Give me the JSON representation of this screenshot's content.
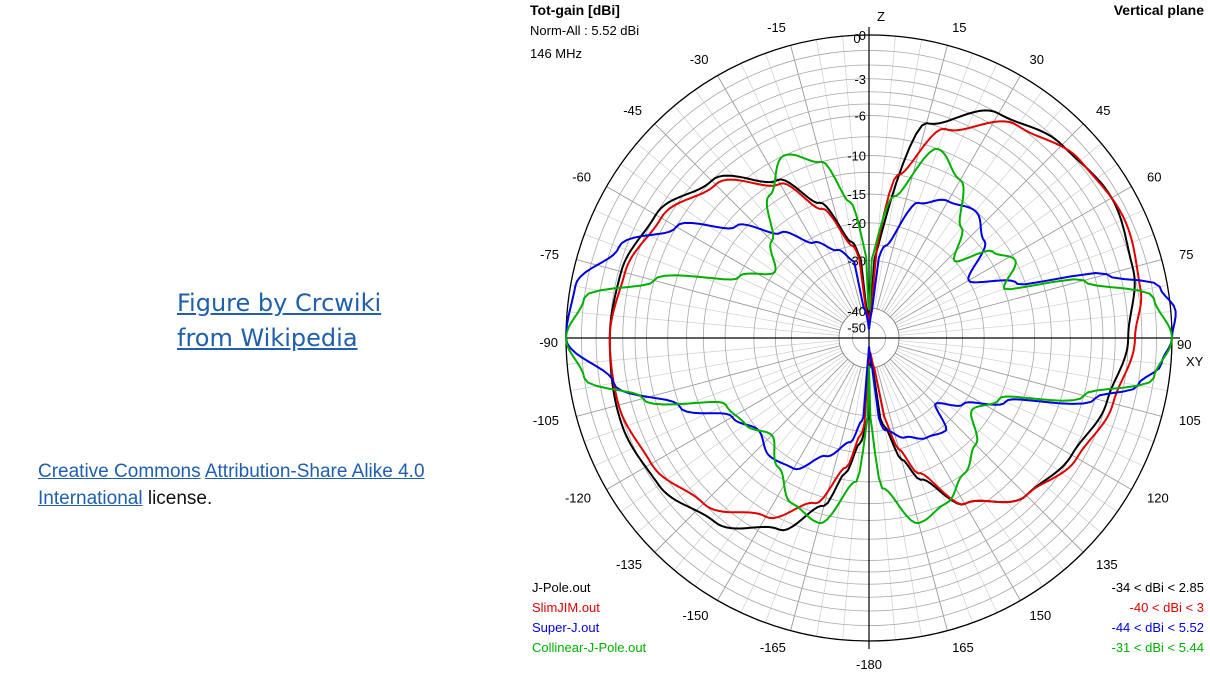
{
  "credit": {
    "line1": "Figure by Crcwiki",
    "line2": "from Wikipedia"
  },
  "license": {
    "link1": "Creative Commons",
    "link2": "Attribution-Share Alike 4.0",
    "link3": "International",
    "suffix": " license."
  },
  "chart_data": {
    "type": "polar",
    "title": "Tot-gain [dBi]",
    "title_right": "Vertical plane",
    "subtitle_1": "Norm-All : 5.52 dBi",
    "subtitle_2": "146 MHz",
    "axis_top_label": "Z",
    "axis_right_label": "XY",
    "angle_ticks": [
      "0",
      "15",
      "30",
      "45",
      "60",
      "75",
      "90",
      "105",
      "120",
      "135",
      "150",
      "165",
      "-180",
      "-165",
      "-150",
      "-135",
      "-120",
      "-105",
      "-90",
      "-75",
      "-60",
      "-45",
      "-30",
      "-15"
    ],
    "ring_labels": [
      "0",
      "-3",
      "-6",
      "-10",
      "-15",
      "-20",
      "-30",
      "-40",
      "-50"
    ],
    "grid": true,
    "series": [
      {
        "name": "J-Pole.out",
        "range_text": "-34 < dBi < 2.85",
        "color": "#000000",
        "points": [
          [
            0,
            -34
          ],
          [
            15,
            -6
          ],
          [
            30,
            -3
          ],
          [
            45,
            -2
          ],
          [
            60,
            -1.5
          ],
          [
            75,
            -2
          ],
          [
            90,
            -3
          ],
          [
            105,
            -4
          ],
          [
            120,
            -5
          ],
          [
            135,
            -6
          ],
          [
            150,
            -9
          ],
          [
            160,
            -14
          ],
          [
            165,
            -18
          ],
          [
            170,
            -26
          ],
          [
            175,
            -34
          ],
          [
            180,
            -30
          ],
          [
            185,
            -22
          ],
          [
            190,
            -16
          ],
          [
            195,
            -11
          ],
          [
            205,
            -7
          ],
          [
            220,
            -4.5
          ],
          [
            235,
            -3.2
          ],
          [
            250,
            -2.8
          ],
          [
            270,
            -3
          ],
          [
            285,
            -3.2
          ],
          [
            300,
            -4
          ],
          [
            315,
            -6
          ],
          [
            330,
            -10
          ],
          [
            340,
            -15
          ],
          [
            350,
            -24
          ],
          [
            355,
            -30
          ]
        ]
      },
      {
        "name": "SlimJIM.out",
        "range_text": "-40 < dBi < 3",
        "color": "#e00000",
        "points": [
          [
            0,
            -40
          ],
          [
            10,
            -12
          ],
          [
            20,
            -6
          ],
          [
            35,
            -3
          ],
          [
            50,
            -1.8
          ],
          [
            65,
            -1.4
          ],
          [
            80,
            -1.8
          ],
          [
            90,
            -2.5
          ],
          [
            105,
            -3.5
          ],
          [
            120,
            -4.5
          ],
          [
            135,
            -6
          ],
          [
            150,
            -9
          ],
          [
            160,
            -15
          ],
          [
            165,
            -20
          ],
          [
            170,
            -30
          ],
          [
            175,
            -40
          ],
          [
            180,
            -34
          ],
          [
            185,
            -24
          ],
          [
            190,
            -17
          ],
          [
            198,
            -11
          ],
          [
            210,
            -7.5
          ],
          [
            225,
            -5
          ],
          [
            240,
            -3.6
          ],
          [
            255,
            -3
          ],
          [
            270,
            -3
          ],
          [
            285,
            -3.5
          ],
          [
            300,
            -4.5
          ],
          [
            315,
            -6.5
          ],
          [
            330,
            -10.5
          ],
          [
            340,
            -16
          ],
          [
            350,
            -25
          ],
          [
            356,
            -34
          ]
        ]
      },
      {
        "name": "Super-J.out",
        "range_text": "-44 < dBi < 5.52",
        "color": "#0000e0",
        "points": [
          [
            0,
            -44
          ],
          [
            10,
            -25
          ],
          [
            20,
            -15
          ],
          [
            30,
            -13
          ],
          [
            40,
            -12
          ],
          [
            50,
            -14
          ],
          [
            60,
            -20
          ],
          [
            70,
            -13
          ],
          [
            75,
            -4
          ],
          [
            80,
            -0.5
          ],
          [
            85,
            0.3
          ],
          [
            90,
            0
          ],
          [
            95,
            -0.6
          ],
          [
            100,
            -2
          ],
          [
            105,
            -5
          ],
          [
            115,
            -14
          ],
          [
            125,
            -20
          ],
          [
            135,
            -25
          ],
          [
            140,
            -19
          ],
          [
            150,
            -20
          ],
          [
            160,
            -22
          ],
          [
            170,
            -25
          ],
          [
            180,
            -44
          ],
          [
            185,
            -28
          ],
          [
            190,
            -22
          ],
          [
            200,
            -18
          ],
          [
            210,
            -14
          ],
          [
            220,
            -13.5
          ],
          [
            230,
            -15
          ],
          [
            240,
            -13
          ],
          [
            250,
            -8
          ],
          [
            260,
            -3
          ],
          [
            270,
            0
          ],
          [
            280,
            -0.3
          ],
          [
            290,
            -2.5
          ],
          [
            300,
            -6
          ],
          [
            310,
            -11
          ],
          [
            320,
            -16
          ],
          [
            330,
            -21
          ],
          [
            340,
            -25
          ],
          [
            350,
            -30
          ]
        ]
      },
      {
        "name": "Collinear-J-Pole.out",
        "range_text": "-31 < dBi < 5.44",
        "color": "#00b000",
        "points": [
          [
            0,
            -31
          ],
          [
            10,
            -15
          ],
          [
            20,
            -8
          ],
          [
            30,
            -10
          ],
          [
            40,
            -15
          ],
          [
            48,
            -20
          ],
          [
            55,
            -14
          ],
          [
            62,
            -12
          ],
          [
            70,
            -15
          ],
          [
            75,
            -6
          ],
          [
            82,
            -1
          ],
          [
            90,
            0
          ],
          [
            98,
            -1
          ],
          [
            105,
            -6
          ],
          [
            115,
            -15
          ],
          [
            125,
            -18
          ],
          [
            135,
            -14
          ],
          [
            145,
            -12
          ],
          [
            155,
            -10
          ],
          [
            165,
            -9
          ],
          [
            175,
            -14
          ],
          [
            180,
            -31
          ],
          [
            185,
            -15
          ],
          [
            195,
            -9
          ],
          [
            205,
            -10
          ],
          [
            215,
            -13
          ],
          [
            225,
            -16
          ],
          [
            235,
            -14
          ],
          [
            245,
            -13
          ],
          [
            255,
            -5
          ],
          [
            262,
            -1
          ],
          [
            270,
            0
          ],
          [
            278,
            -1
          ],
          [
            285,
            -6
          ],
          [
            295,
            -15
          ],
          [
            305,
            -20
          ],
          [
            315,
            -16
          ],
          [
            325,
            -11
          ],
          [
            335,
            -8
          ],
          [
            345,
            -10
          ],
          [
            352,
            -16
          ]
        ]
      }
    ]
  }
}
